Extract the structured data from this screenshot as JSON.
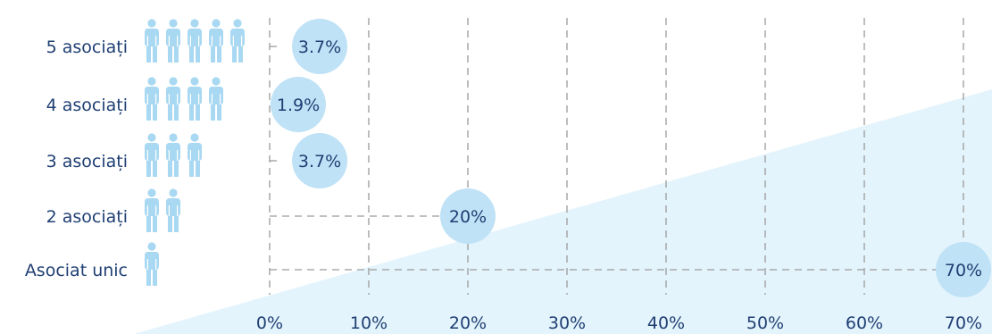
{
  "chart_data": {
    "type": "scatter",
    "title": "",
    "xlabel": "",
    "ylabel": "",
    "xlim": [
      0,
      70
    ],
    "xticks": [
      "0%",
      "10%",
      "20%",
      "30%",
      "40%",
      "50%",
      "60%",
      "70%"
    ],
    "grid": true,
    "categories": [
      "5 asociați",
      "4 asociați",
      "3 asociați",
      "2 asociați",
      "Asociat unic"
    ],
    "icon_counts": [
      5,
      4,
      3,
      2,
      1
    ],
    "values": [
      3.7,
      1.9,
      3.7,
      20,
      70
    ],
    "value_labels": [
      "3.7%",
      "1.9%",
      "3.7%",
      "20%",
      "70%"
    ],
    "colors": {
      "bubble": "#bfe2f6",
      "person_icon": "#a8d8f2",
      "background_wedge": "#e4f4fc",
      "grid": "#9a9a9a",
      "text": "#1f3f73"
    },
    "icon": "person-icon"
  }
}
